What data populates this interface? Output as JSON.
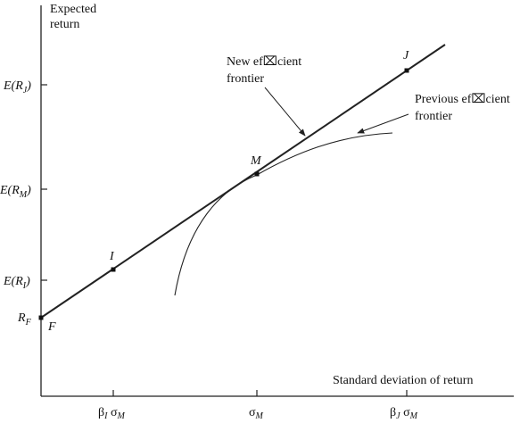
{
  "y_axis_label": [
    "Expected",
    "return"
  ],
  "x_axis_label": "Standard deviation of return",
  "y_ticks": {
    "er_j": {
      "main": "E(R",
      "sub": "J",
      "close": ")"
    },
    "er_m": {
      "main": "E(R",
      "sub": "M",
      "close": ")"
    },
    "er_i": {
      "main": "E(R",
      "sub": "I",
      "close": ")"
    },
    "rf": {
      "main": "R",
      "sub": "F"
    }
  },
  "x_ticks": {
    "beta_i_sigma_m": {
      "beta": "β",
      "beta_sub": "I",
      "sigma": " σ",
      "sigma_sub": "M"
    },
    "sigma_m": {
      "sigma": "σ",
      "sigma_sub": "M"
    },
    "beta_j_sigma_m": {
      "beta": "β",
      "beta_sub": "J",
      "sigma": " σ",
      "sigma_sub": "M"
    }
  },
  "points": {
    "j": "J",
    "m": "M",
    "i": "I",
    "f": "F"
  },
  "annotations": {
    "new_frontier": [
      "New ef⌧cient",
      "frontier"
    ],
    "previous_frontier": [
      "Previous ef⌧cient",
      "frontier"
    ]
  },
  "colors": {
    "line": "#222222",
    "text": "#111111"
  }
}
